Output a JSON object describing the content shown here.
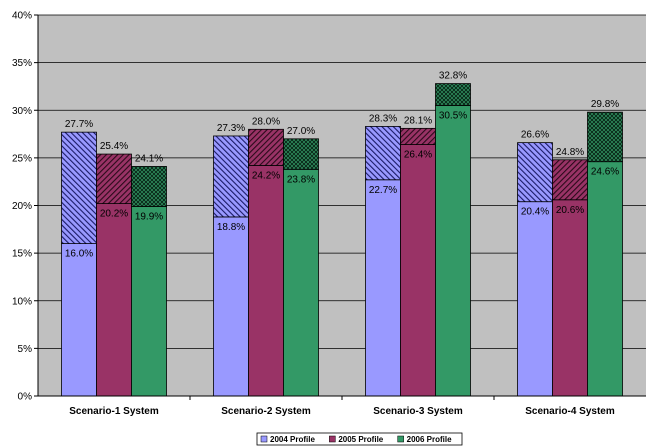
{
  "chart_data": {
    "type": "bar",
    "subtype": "stacked",
    "categories": [
      "Scenario-1 System",
      "Scenario-2 System",
      "Scenario-3 System",
      "Scenario-4 System"
    ],
    "series": [
      {
        "name": "2004 Profile",
        "color": "#9999ff",
        "base_values": [
          16.0,
          18.8,
          22.7,
          20.4
        ],
        "base_labels": [
          "16.0%",
          "18.8%",
          "22.7%",
          "20.4%"
        ],
        "total_values": [
          27.7,
          27.3,
          28.3,
          26.6
        ],
        "total_labels": [
          "27.7%",
          "27.3%",
          "28.3%",
          "26.6%"
        ]
      },
      {
        "name": "2005 Profile",
        "color": "#993366",
        "base_values": [
          20.2,
          24.2,
          26.4,
          20.6
        ],
        "base_labels": [
          "20.2%",
          "24.2%",
          "26.4%",
          "20.6%"
        ],
        "total_values": [
          25.4,
          28.0,
          28.1,
          24.8
        ],
        "total_labels": [
          "25.4%",
          "28.0%",
          "28.1%",
          "24.8%"
        ]
      },
      {
        "name": "2006 Profile",
        "color": "#339966",
        "base_values": [
          19.9,
          23.8,
          30.5,
          24.6
        ],
        "base_labels": [
          "19.9%",
          "23.8%",
          "30.5%",
          "24.6%"
        ],
        "total_values": [
          24.1,
          27.0,
          32.8,
          29.8
        ],
        "total_labels": [
          "24.1%",
          "27.0%",
          "32.8%",
          "29.8%"
        ]
      }
    ],
    "y_ticks": [
      "0%",
      "5%",
      "10%",
      "15%",
      "20%",
      "25%",
      "30%",
      "35%",
      "40%"
    ],
    "ylim": [
      0,
      40
    ],
    "grid": true,
    "legend_position": "bottom-center",
    "plot_background": "#c0c0c0",
    "title": "",
    "xlabel": "",
    "ylabel": ""
  }
}
